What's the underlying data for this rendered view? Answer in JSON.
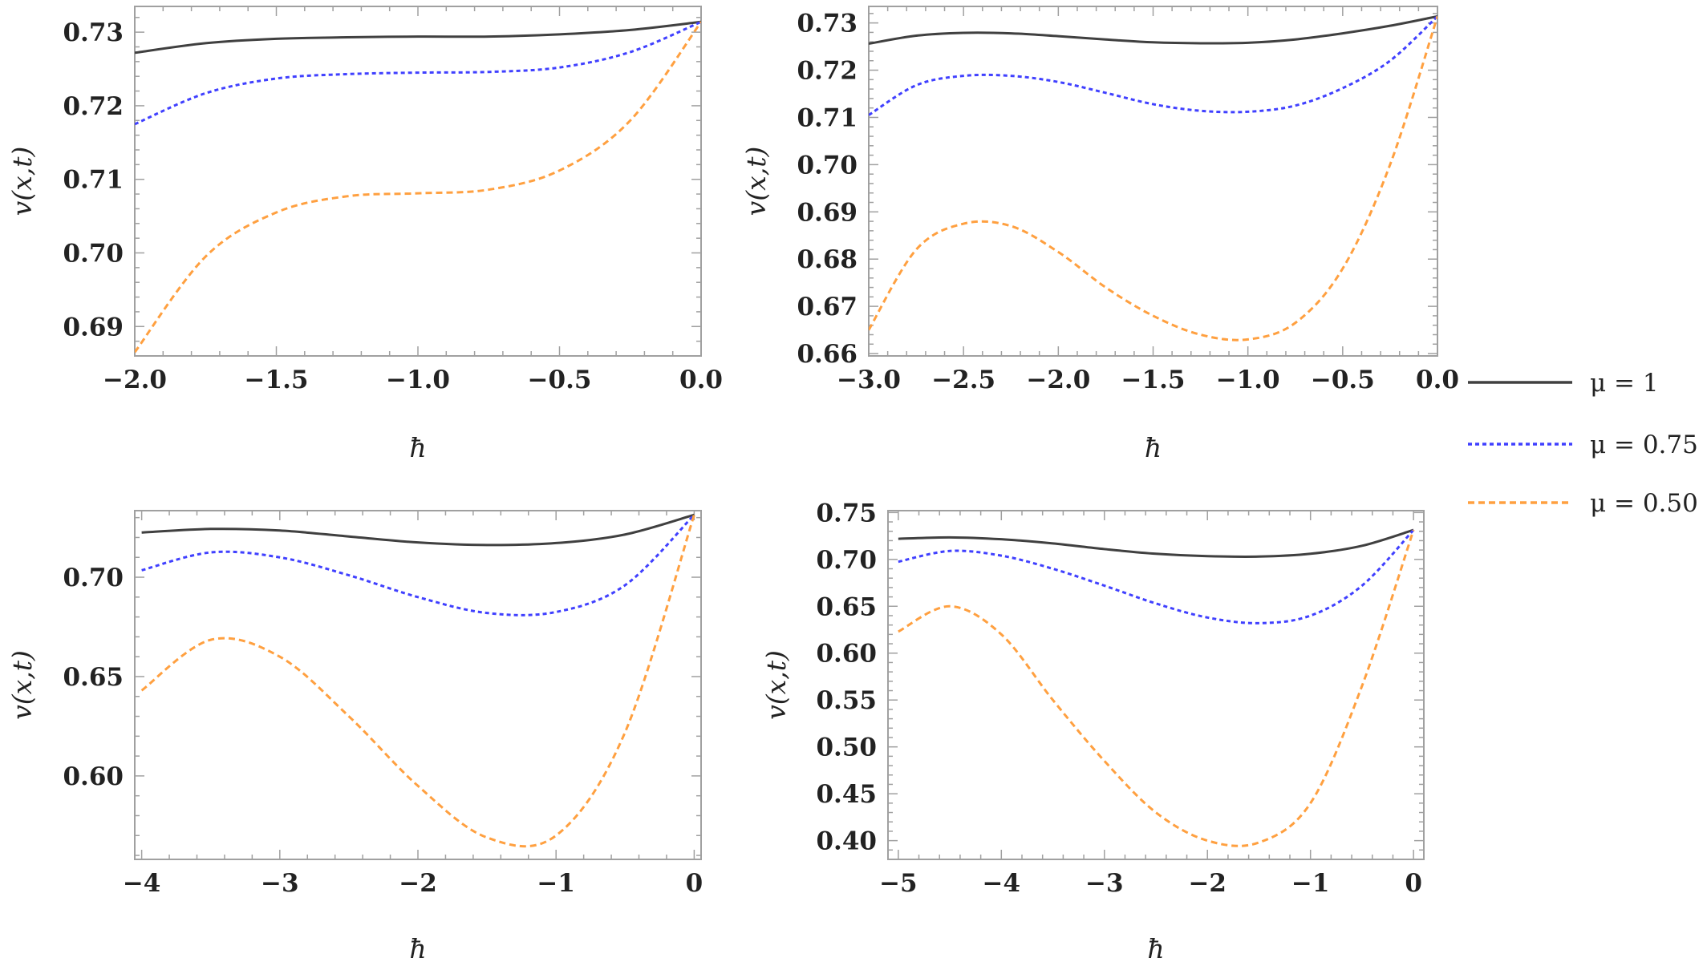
{
  "colors": {
    "mu_1": "#404040",
    "mu_075": "#4040FF",
    "mu_050": "#FFA040",
    "frame": "#A0A0A0"
  },
  "legend": {
    "placement": "right",
    "entries": [
      {
        "label": "μ = 1",
        "color": "#404040",
        "dash": "solid"
      },
      {
        "label": "μ = 0.75",
        "color": "#4040FF",
        "dash": "dotted"
      },
      {
        "label": "μ = 0.50",
        "color": "#FFA040",
        "dash": "dashed"
      }
    ]
  },
  "chart_data": [
    {
      "type": "line",
      "xlabel": "ħ",
      "ylabel": "v(x,t)",
      "xlim": [
        -2.0,
        0.0
      ],
      "ylim": [
        0.686,
        0.7335
      ],
      "xticks": [
        -2.0,
        -1.5,
        -1.0,
        -0.5,
        0.0
      ],
      "xtick_labels": [
        "−2.0",
        "−1.5",
        "−1.0",
        "−0.5",
        "0.0"
      ],
      "yticks": [
        0.69,
        0.7,
        0.71,
        0.72,
        0.73
      ],
      "ytick_labels": [
        "0.69",
        "0.70",
        "0.71",
        "0.72",
        "0.73"
      ],
      "grid": false,
      "series": [
        {
          "name": "μ = 1",
          "x": [
            -2.0,
            -1.75,
            -1.5,
            -1.25,
            -1.0,
            -0.75,
            -0.5,
            -0.25,
            0.0
          ],
          "y": [
            0.7272,
            0.7285,
            0.7291,
            0.7293,
            0.7294,
            0.7294,
            0.7297,
            0.7303,
            0.7314
          ]
        },
        {
          "name": "μ = 0.75",
          "x": [
            -2.0,
            -1.75,
            -1.5,
            -1.25,
            -1.0,
            -0.75,
            -0.5,
            -0.25,
            0.0
          ],
          "y": [
            0.7175,
            0.7217,
            0.7237,
            0.7243,
            0.7245,
            0.7246,
            0.7252,
            0.7273,
            0.7314
          ]
        },
        {
          "name": "μ = 0.50",
          "x": [
            -2.0,
            -1.75,
            -1.5,
            -1.25,
            -1.0,
            -0.75,
            -0.5,
            -0.25,
            0.0
          ],
          "y": [
            0.6865,
            0.6995,
            0.7055,
            0.7077,
            0.7081,
            0.7086,
            0.7112,
            0.718,
            0.7314
          ]
        }
      ]
    },
    {
      "type": "line",
      "xlabel": "ħ",
      "ylabel": "v(x,t)",
      "xlim": [
        -3.0,
        0.0
      ],
      "ylim": [
        0.6595,
        0.7335
      ],
      "xticks": [
        -3.0,
        -2.5,
        -2.0,
        -1.5,
        -1.0,
        -0.5,
        0.0
      ],
      "xtick_labels": [
        "−3.0",
        "−2.5",
        "−2.0",
        "−1.5",
        "−1.0",
        "−0.5",
        "0.0"
      ],
      "yticks": [
        0.66,
        0.67,
        0.68,
        0.69,
        0.7,
        0.71,
        0.72,
        0.73
      ],
      "ytick_labels": [
        "0.66",
        "0.67",
        "0.68",
        "0.69",
        "0.70",
        "0.71",
        "0.72",
        "0.73"
      ],
      "grid": false,
      "series": [
        {
          "name": "μ = 1",
          "x": [
            -3.0,
            -2.75,
            -2.5,
            -2.25,
            -2.0,
            -1.75,
            -1.5,
            -1.25,
            -1.0,
            -0.75,
            -0.5,
            -0.25,
            0.0
          ],
          "y": [
            0.7256,
            0.7273,
            0.7279,
            0.7278,
            0.7272,
            0.7265,
            0.7259,
            0.7257,
            0.7258,
            0.7265,
            0.7278,
            0.7294,
            0.7314
          ]
        },
        {
          "name": "μ = 0.75",
          "x": [
            -3.0,
            -2.75,
            -2.5,
            -2.25,
            -2.0,
            -1.75,
            -1.5,
            -1.25,
            -1.0,
            -0.75,
            -0.5,
            -0.25,
            0.0
          ],
          "y": [
            0.7105,
            0.7168,
            0.7188,
            0.7188,
            0.7175,
            0.7152,
            0.7128,
            0.7114,
            0.7112,
            0.7125,
            0.7162,
            0.722,
            0.7314
          ]
        },
        {
          "name": "μ = 0.50",
          "x": [
            -3.0,
            -2.75,
            -2.5,
            -2.25,
            -2.0,
            -1.75,
            -1.5,
            -1.25,
            -1.0,
            -0.75,
            -0.5,
            -0.25,
            0.0
          ],
          "y": [
            0.665,
            0.682,
            0.6875,
            0.687,
            0.6815,
            0.674,
            0.668,
            0.664,
            0.663,
            0.6665,
            0.678,
            0.7,
            0.7314
          ]
        }
      ]
    },
    {
      "type": "line",
      "xlabel": "ħ",
      "ylabel": "v(x,t)",
      "xlim": [
        -4.05,
        0.05
      ],
      "ylim": [
        0.558,
        0.7335
      ],
      "xticks": [
        -4,
        -3,
        -2,
        -1,
        0
      ],
      "xtick_labels": [
        "−4",
        "−3",
        "−2",
        "−1",
        "0"
      ],
      "yticks": [
        0.6,
        0.65,
        0.7
      ],
      "ytick_labels": [
        "0.60",
        "0.65",
        "0.70"
      ],
      "grid": false,
      "series": [
        {
          "name": "μ = 1",
          "x": [
            -4.0,
            -3.5,
            -3.0,
            -2.5,
            -2.0,
            -1.5,
            -1.0,
            -0.5,
            0.0
          ],
          "y": [
            0.7225,
            0.7243,
            0.7235,
            0.7205,
            0.7175,
            0.7162,
            0.7172,
            0.7215,
            0.7314
          ]
        },
        {
          "name": "μ = 0.75",
          "x": [
            -4.0,
            -3.5,
            -3.0,
            -2.5,
            -2.0,
            -1.5,
            -1.0,
            -0.5,
            0.0
          ],
          "y": [
            0.7035,
            0.7125,
            0.71,
            0.701,
            0.69,
            0.682,
            0.6825,
            0.696,
            0.7314
          ]
        },
        {
          "name": "μ = 0.50",
          "x": [
            -4.0,
            -3.5,
            -3.0,
            -2.5,
            -2.0,
            -1.5,
            -1.0,
            -0.5,
            0.0
          ],
          "y": [
            0.643,
            0.6685,
            0.66,
            0.63,
            0.595,
            0.569,
            0.57,
            0.622,
            0.7314
          ]
        }
      ]
    },
    {
      "type": "line",
      "xlabel": "ħ",
      "ylabel": "v(x,t)",
      "xlim": [
        -5.1,
        0.1
      ],
      "ylim": [
        0.38,
        0.752
      ],
      "xticks": [
        -5,
        -4,
        -3,
        -2,
        -1,
        0
      ],
      "xtick_labels": [
        "−5",
        "−4",
        "−3",
        "−2",
        "−1",
        "0"
      ],
      "yticks": [
        0.4,
        0.45,
        0.5,
        0.55,
        0.6,
        0.65,
        0.7,
        0.75
      ],
      "ytick_labels": [
        "0.40",
        "0.45",
        "0.50",
        "0.55",
        "0.60",
        "0.65",
        "0.70",
        "0.75"
      ],
      "grid": false,
      "series": [
        {
          "name": "μ = 1",
          "x": [
            -5.0,
            -4.5,
            -4.0,
            -3.5,
            -3.0,
            -2.5,
            -2.0,
            -1.5,
            -1.0,
            -0.5,
            0.0
          ],
          "y": [
            0.722,
            0.7235,
            0.7215,
            0.717,
            0.711,
            0.706,
            0.7035,
            0.703,
            0.706,
            0.7145,
            0.7314
          ]
        },
        {
          "name": "μ = 0.75",
          "x": [
            -5.0,
            -4.5,
            -4.0,
            -3.5,
            -3.0,
            -2.5,
            -2.0,
            -1.5,
            -1.0,
            -0.5,
            0.0
          ],
          "y": [
            0.6975,
            0.709,
            0.704,
            0.69,
            0.672,
            0.653,
            0.638,
            0.632,
            0.64,
            0.672,
            0.7314
          ]
        },
        {
          "name": "μ = 0.50",
          "x": [
            -5.0,
            -4.5,
            -4.0,
            -3.5,
            -3.0,
            -2.5,
            -2.0,
            -1.5,
            -1.0,
            -0.5,
            0.0
          ],
          "y": [
            0.623,
            0.65,
            0.62,
            0.55,
            0.485,
            0.43,
            0.4,
            0.398,
            0.44,
            0.565,
            0.7314
          ]
        }
      ]
    }
  ]
}
